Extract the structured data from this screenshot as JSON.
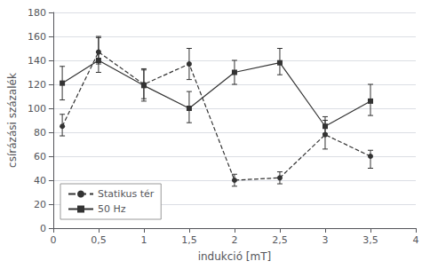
{
  "chart_data": {
    "type": "line",
    "xlabel": "indukció [mT]",
    "ylabel": "csírázási százalék",
    "x": [
      0.1,
      0.5,
      1.0,
      1.5,
      2.0,
      2.5,
      3.0,
      3.5
    ],
    "series": [
      {
        "name": "Statikus tér",
        "color": "#333333",
        "marker": "circle",
        "line_style": "dashed",
        "values": [
          85,
          147,
          120,
          137,
          40,
          42,
          78,
          60
        ],
        "yerr_lo": [
          8,
          10,
          12,
          13,
          5,
          5,
          12,
          10
        ],
        "yerr_hi": [
          10,
          12,
          12,
          13,
          5,
          5,
          12,
          5
        ]
      },
      {
        "name": "50 Hz",
        "color": "#333333",
        "marker": "square",
        "line_style": "solid",
        "values": [
          121,
          140,
          119,
          100,
          130,
          138,
          85,
          106
        ],
        "yerr_lo": [
          14,
          10,
          13,
          12,
          10,
          10,
          6,
          12
        ],
        "yerr_hi": [
          14,
          20,
          14,
          14,
          10,
          12,
          8,
          14
        ]
      }
    ],
    "xlim": [
      0,
      4
    ],
    "xticks": [
      0,
      {
        "value": 0.5,
        "label": "0,5"
      },
      1,
      {
        "value": 1.5,
        "label": "1,5"
      },
      2,
      {
        "value": 2.5,
        "label": "2,5"
      },
      3,
      {
        "value": 3.5,
        "label": "3,5"
      },
      4
    ],
    "ylim": [
      0,
      180
    ],
    "yticks": [
      0,
      20,
      40,
      60,
      80,
      100,
      120,
      140,
      160,
      180
    ],
    "grid": true,
    "legend": "lower left"
  }
}
